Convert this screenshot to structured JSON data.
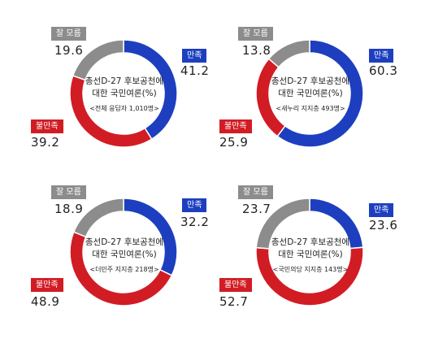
{
  "colors": {
    "satisfied": "#1d3fbf",
    "dissatisfied": "#d21c24",
    "unknown": "#8c8c8c"
  },
  "chart_data": [
    {
      "type": "donut",
      "title_line1": "총선D-27 후보공천에",
      "title_line2": "대한 국민여론(%)",
      "subtitle": "<전체 응답자 1,010명>",
      "series": [
        {
          "name": "만족",
          "value": 41.2
        },
        {
          "name": "불만족",
          "value": 39.2
        },
        {
          "name": "잘 모름",
          "value": 19.6
        }
      ]
    },
    {
      "type": "donut",
      "title_line1": "총선D-27 후보공천에",
      "title_line2": "대한 국민여론(%)",
      "subtitle": "<새누리 지지층 493명>",
      "series": [
        {
          "name": "만족",
          "value": 60.3
        },
        {
          "name": "불만족",
          "value": 25.9
        },
        {
          "name": "잘 모름",
          "value": 13.8
        }
      ]
    },
    {
      "type": "donut",
      "title_line1": "총선D-27 후보공천에",
      "title_line2": "대한 국민여론(%)",
      "subtitle": "<더민주 지지층 218명>",
      "series": [
        {
          "name": "만족",
          "value": 32.2
        },
        {
          "name": "불만족",
          "value": 48.9
        },
        {
          "name": "잘 모름",
          "value": 18.9
        }
      ]
    },
    {
      "type": "donut",
      "title_line1": "총선D-27 후보공천에",
      "title_line2": "대한 국민여론(%)",
      "subtitle": "<국민의당 지지층 143명>",
      "series": [
        {
          "name": "만족",
          "value": 23.6
        },
        {
          "name": "불만족",
          "value": 52.7
        },
        {
          "name": "잘 모름",
          "value": 23.7
        }
      ]
    }
  ]
}
